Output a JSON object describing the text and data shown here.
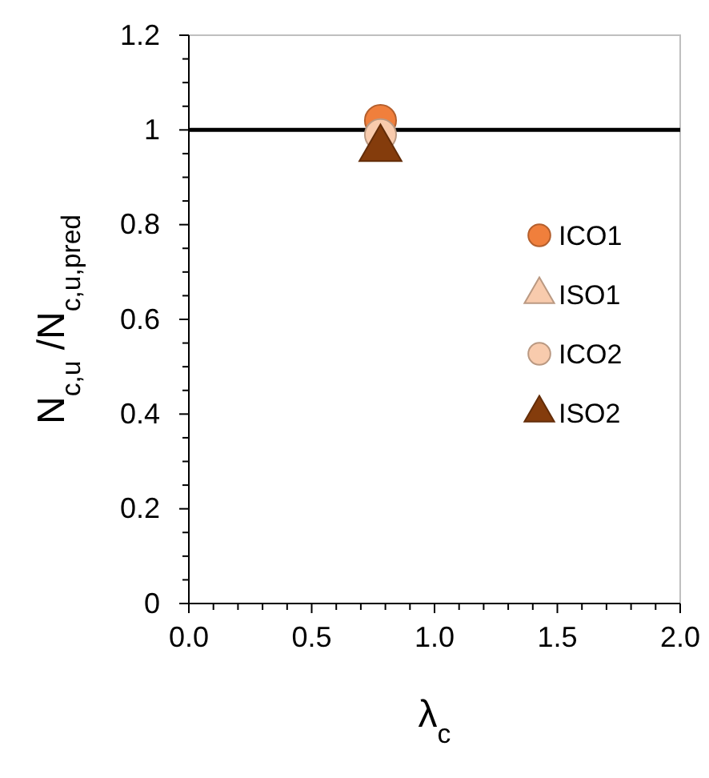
{
  "chart_data": {
    "type": "scatter",
    "xlabel": "λ$_{c}$",
    "ylabel": "N$_{c,u}$ /N$_{c,u,pred}$",
    "x": [
      0.78
    ],
    "xlim": [
      0,
      2
    ],
    "ylim": [
      0,
      1.2
    ],
    "xticks": [
      {
        "value": 0,
        "label": "0.0"
      },
      {
        "value": 0.1,
        "label": null
      },
      {
        "value": 0.2,
        "label": null
      },
      {
        "value": 0.3,
        "label": null
      },
      {
        "value": 0.4,
        "label": null
      },
      {
        "value": 0.5,
        "label": "0.5"
      },
      {
        "value": 0.6,
        "label": null
      },
      {
        "value": 0.7,
        "label": null
      },
      {
        "value": 0.8,
        "label": null
      },
      {
        "value": 0.9,
        "label": null
      },
      {
        "value": 1,
        "label": "1.0"
      },
      {
        "value": 1.1,
        "label": null
      },
      {
        "value": 1.2,
        "label": null
      },
      {
        "value": 1.3,
        "label": null
      },
      {
        "value": 1.4,
        "label": null
      },
      {
        "value": 1.5,
        "label": "1.5"
      },
      {
        "value": 1.6,
        "label": null
      },
      {
        "value": 1.7,
        "label": null
      },
      {
        "value": 1.8,
        "label": null
      },
      {
        "value": 1.9,
        "label": null
      },
      {
        "value": 2,
        "label": "2.0"
      }
    ],
    "yticks": [
      0,
      {
        "value": 0.05,
        "label": null
      },
      {
        "value": 0.1,
        "label": null
      },
      {
        "value": 0.15,
        "label": null
      },
      0.2,
      {
        "value": 0.25,
        "label": null
      },
      {
        "value": 0.3,
        "label": null
      },
      {
        "value": 0.35,
        "label": null
      },
      0.4,
      {
        "value": 0.45,
        "label": null
      },
      {
        "value": 0.5,
        "label": null
      },
      {
        "value": 0.55,
        "label": null
      },
      0.6,
      {
        "value": 0.65,
        "label": null
      },
      {
        "value": 0.7,
        "label": null
      },
      {
        "value": 0.75,
        "label": null
      },
      0.8,
      {
        "value": 0.85,
        "label": null
      },
      {
        "value": 0.9,
        "label": null
      },
      {
        "value": 0.95,
        "label": null
      },
      1,
      {
        "value": 1.05,
        "label": null
      },
      {
        "value": 1.1,
        "label": null
      },
      {
        "value": 1.15,
        "label": null
      },
      1.2
    ],
    "grid": false,
    "legend": "right",
    "ref_lines": [
      {
        "axis": "y",
        "value": 1,
        "color": "#000000",
        "line_style": "solid"
      }
    ],
    "series": [
      {
        "name": "ICO1",
        "color": "#f07f3c",
        "marker": "circle",
        "values": [
          1.02
        ]
      },
      {
        "name": "ISO1",
        "color": "#f8cbad",
        "marker": "triangle",
        "values": [
          null
        ]
      },
      {
        "name": "ICO2",
        "color": "#f8cbad",
        "marker": "circle",
        "values": [
          0.99
        ]
      },
      {
        "name": "ISO2",
        "color": "#843c0c",
        "marker": "triangle",
        "values": [
          0.96
        ]
      }
    ]
  }
}
